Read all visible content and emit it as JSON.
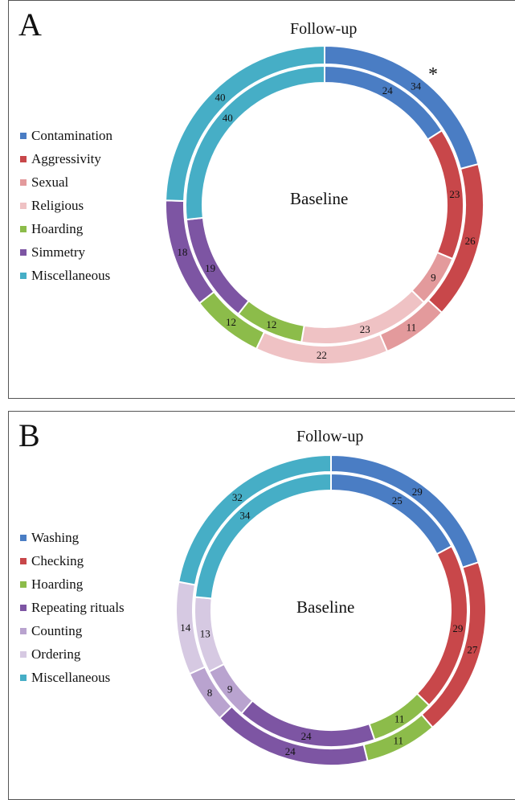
{
  "chart_data": [
    {
      "type": "donut",
      "panel": "A",
      "outer_ring_label": "Follow-up",
      "inner_ring_label": "Baseline",
      "annotation": "*",
      "categories": [
        "Contamination",
        "Aggressivity",
        "Sexual",
        "Religious",
        "Hoarding",
        "Simmetry",
        "Miscellaneous"
      ],
      "colors": [
        "#4a7dc4",
        "#c8474a",
        "#e39a9c",
        "#efc2c4",
        "#8cbc4a",
        "#7d55a3",
        "#46aec6"
      ],
      "series": [
        {
          "name": "Follow-up",
          "values": [
            34,
            26,
            11,
            22,
            12,
            18,
            40
          ]
        },
        {
          "name": "Baseline",
          "values": [
            24,
            23,
            9,
            23,
            12,
            19,
            40
          ]
        }
      ],
      "legend_position": "left"
    },
    {
      "type": "donut",
      "panel": "B",
      "outer_ring_label": "Follow-up",
      "inner_ring_label": "Baseline",
      "categories": [
        "Washing",
        "Checking",
        "Hoarding",
        "Repeating rituals",
        "Counting",
        "Ordering",
        "Miscellaneous"
      ],
      "colors": [
        "#4a7dc4",
        "#c8474a",
        "#8cbc4a",
        "#7d55a3",
        "#b9a3cf",
        "#d6c9e2",
        "#46aec6"
      ],
      "series": [
        {
          "name": "Follow-up",
          "values": [
            29,
            27,
            11,
            24,
            8,
            14,
            32
          ]
        },
        {
          "name": "Baseline",
          "values": [
            25,
            29,
            11,
            24,
            9,
            13,
            34
          ]
        }
      ],
      "legend_position": "left"
    }
  ]
}
